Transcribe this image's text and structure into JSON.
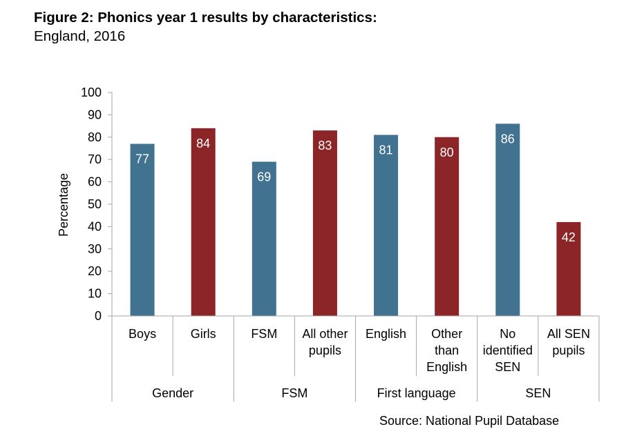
{
  "header": {
    "title": "Figure 2: Phonics year 1 results by characteristics:",
    "subtitle": "England, 2016"
  },
  "footer": {
    "source": "Source: National Pupil Database"
  },
  "colors": {
    "blue": "#41728f",
    "red": "#8b2528",
    "axis": "#a6a6a6"
  },
  "chart_data": {
    "type": "bar",
    "ylabel": "Percentage",
    "xlabel": "",
    "ylim": [
      0,
      100
    ],
    "yticks": [
      0,
      10,
      20,
      30,
      40,
      50,
      60,
      70,
      80,
      90,
      100
    ],
    "grid": false,
    "categories": [
      [
        "Boys"
      ],
      [
        "Girls"
      ],
      [
        "FSM"
      ],
      [
        "All other",
        "pupils"
      ],
      [
        "English"
      ],
      [
        "Other",
        "than",
        "English"
      ],
      [
        "No",
        "identified",
        "SEN"
      ],
      [
        "All SEN",
        "pupils"
      ]
    ],
    "values": [
      77,
      84,
      69,
      83,
      81,
      80,
      86,
      42
    ],
    "bar_colors": [
      "blue",
      "red",
      "blue",
      "red",
      "blue",
      "red",
      "blue",
      "red"
    ],
    "groups": [
      {
        "label": "Gender",
        "span": 2
      },
      {
        "label": "FSM",
        "span": 2
      },
      {
        "label": "First language",
        "span": 2
      },
      {
        "label": "SEN",
        "span": 2
      }
    ]
  }
}
